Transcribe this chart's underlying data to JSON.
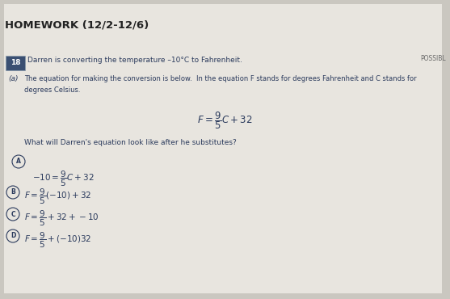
{
  "title": "HOMEWORK (12/2-12/6)",
  "possible_label": "POSSIBL",
  "question_num": "18",
  "question_text": "Darren is converting the temperature –10°C to Fahrenheit.",
  "part_a_label": "(a)",
  "part_a_text1": "The equation for making the conversion is below.  In the equation F stands for degrees Fahrenheit and C stands for",
  "part_a_text2": "degrees Celsius.",
  "equation": "$F = \\dfrac{9}{5}C + 32$",
  "question2": "What will Darren's equation look like after he substitutes?",
  "option_a_eq": "$-10 = \\dfrac{9}{5}C + 32$",
  "option_b_eq": "$F = \\dfrac{9}{5}(-10) + 32$",
  "option_c_eq": "$F = \\dfrac{9}{5} + 32 + -10$",
  "option_d_eq": "$F = \\dfrac{9}{5} + (-10)32$",
  "bg_color": "#cac7c0",
  "paper_color": "#e8e5df",
  "text_color": "#2a3a5c",
  "box_facecolor": "#3a4f72",
  "box_edgecolor": "#8090a0"
}
